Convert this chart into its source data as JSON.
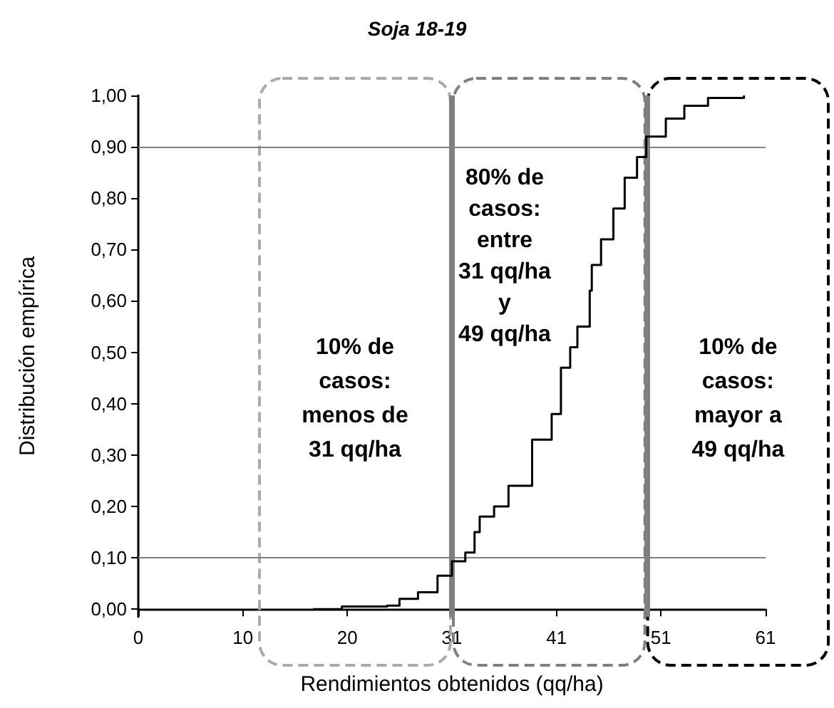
{
  "chart_data": {
    "type": "step",
    "title": "Soja 18-19",
    "xlabel": "Rendimientos obtenidos (qq/ha)",
    "ylabel": "Distribución empírica",
    "x": [
      17.0,
      19.8,
      24.2,
      25.4,
      27.2,
      29.1,
      30.5,
      31.8,
      32.7,
      33.2,
      34.6,
      36.0,
      38.3,
      40.2,
      41.1,
      42.0,
      42.7,
      43.9,
      44.1,
      45.0,
      46.2,
      47.3,
      48.5,
      49.4,
      51.3,
      53.1,
      55.4,
      58.9
    ],
    "series": [
      {
        "color": "#000000",
        "values": [
          0.0,
          0.005,
          0.007,
          0.02,
          0.033,
          0.065,
          0.093,
          0.11,
          0.15,
          0.18,
          0.2,
          0.24,
          0.33,
          0.38,
          0.47,
          0.51,
          0.55,
          0.62,
          0.67,
          0.72,
          0.78,
          0.84,
          0.88,
          0.92,
          0.955,
          0.98,
          0.995,
          1.0
        ]
      }
    ],
    "xlim": [
      0,
      61
    ],
    "xticks": [
      0,
      {
        "value": 10.17,
        "label": "10"
      },
      {
        "value": 20.33,
        "label": "20"
      },
      {
        "value": 30.5,
        "label": "31"
      },
      {
        "value": 40.67,
        "label": "41"
      },
      {
        "value": 50.83,
        "label": "51"
      },
      61
    ],
    "ylim": [
      -0.015,
      1
    ],
    "yticks": [
      {
        "value": 0,
        "label": "0,00"
      },
      {
        "value": 0.1,
        "label": "0,10"
      },
      {
        "value": 0.2,
        "label": "0,20"
      },
      {
        "value": 0.3,
        "label": "0,30"
      },
      {
        "value": 0.4,
        "label": "0,40"
      },
      {
        "value": 0.5,
        "label": "0,50"
      },
      {
        "value": 0.6,
        "label": "0,60"
      },
      {
        "value": 0.7,
        "label": "0,70"
      },
      {
        "value": 0.8,
        "label": "0,80"
      },
      {
        "value": 0.9,
        "label": "0,90"
      },
      {
        "value": 1,
        "label": "1,00"
      }
    ],
    "ref_lines": [
      {
        "axis": "y",
        "value": 0.1,
        "color": "#808080"
      },
      {
        "axis": "y",
        "value": 0.9,
        "color": "#808080"
      },
      {
        "axis": "x",
        "value": 30.5,
        "color": "#808080"
      },
      {
        "axis": "x",
        "value": 49.4,
        "color": "#808080"
      }
    ],
    "annotations": [
      "10% de\ncasos:\nmenos de\n31 qq/ha",
      "80% de\ncasos:\nentre\n31 qq/ha\ny\n49 qq/ha",
      "10% de\ncasos:\nmayor a\n49 qq/ha"
    ],
    "grid": false,
    "marker": "none",
    "line_style": "solid"
  }
}
